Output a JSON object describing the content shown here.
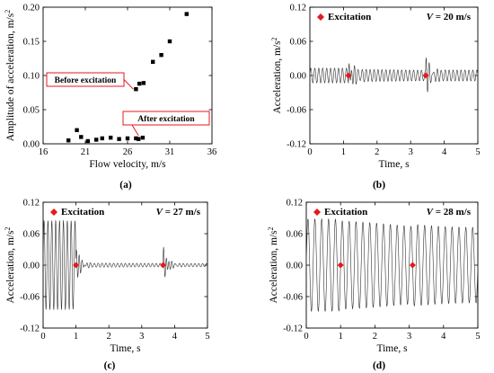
{
  "colors": {
    "axis": "#000000",
    "signal": "#333333",
    "marker": "#e41a1c",
    "callout_border": "#e41a1c",
    "scatter": "#000000"
  },
  "chart_data": [
    {
      "id": "a",
      "type": "scatter",
      "panel_label": "(a)",
      "xlabel": "Flow velocity, m/s",
      "ylabel": "Amplitude of acceleration, m/s",
      "ylabel_sup": "2",
      "xlim": [
        16,
        36
      ],
      "ylim": [
        0,
        0.2
      ],
      "xticks": [
        16,
        21,
        26,
        31,
        36
      ],
      "xtick_labels": [
        "16",
        "21",
        "26",
        "31",
        "36"
      ],
      "yticks": [
        0,
        0.05,
        0.1,
        0.15,
        0.2
      ],
      "ytick_labels": [
        "0.00",
        "0.05",
        "0.10",
        "0.15",
        "0.20"
      ],
      "points": [
        [
          19.0,
          0.005
        ],
        [
          20.0,
          0.02
        ],
        [
          20.5,
          0.01
        ],
        [
          21.3,
          0.004
        ],
        [
          22.3,
          0.006
        ],
        [
          23.0,
          0.008
        ],
        [
          24.0,
          0.009
        ],
        [
          25.0,
          0.007
        ],
        [
          26.0,
          0.008
        ],
        [
          27.0,
          0.008
        ],
        [
          27.3,
          0.007
        ],
        [
          27.8,
          0.009
        ],
        [
          27.0,
          0.08
        ],
        [
          27.4,
          0.088
        ],
        [
          27.9,
          0.089
        ],
        [
          29.0,
          0.12
        ],
        [
          30.0,
          0.13
        ],
        [
          31.0,
          0.15
        ],
        [
          33.0,
          0.19
        ]
      ],
      "annotations": [
        {
          "text": "Before excitation",
          "x": 27.0,
          "y": 0.08
        },
        {
          "text": "After excitation",
          "x": 27.3,
          "y": 0.008
        }
      ]
    },
    {
      "id": "b",
      "type": "line",
      "panel_label": "(b)",
      "xlabel": "Time, s",
      "ylabel": "Acceleration, m/s",
      "ylabel_sup": "2",
      "xlim": [
        0,
        5
      ],
      "ylim": [
        -0.12,
        0.12
      ],
      "xticks": [
        0,
        1,
        2,
        3,
        4,
        5
      ],
      "xtick_labels": [
        "0",
        "1",
        "2",
        "3",
        "4",
        "5"
      ],
      "yticks": [
        -0.12,
        -0.06,
        0,
        0.06,
        0.12
      ],
      "ytick_labels": [
        "-0.12",
        "-0.06",
        "0.00",
        "0.06",
        "0.12"
      ],
      "legend": "Excitation",
      "velocity_label": "V",
      "velocity_value": " = 20 m/s",
      "excitation_times": [
        1.15,
        3.45
      ],
      "signal": {
        "freq_hz": 8.5,
        "segments": [
          [
            0,
            1.15,
            0.013
          ],
          [
            1.15,
            3.45,
            0.011
          ],
          [
            3.45,
            5,
            0.012
          ]
        ],
        "transient_amp": 0.03
      }
    },
    {
      "id": "c",
      "type": "line",
      "panel_label": "(c)",
      "xlabel": "Time, s",
      "ylabel": "Acceleration, m/s",
      "ylabel_sup": "2",
      "xlim": [
        0,
        5
      ],
      "ylim": [
        -0.12,
        0.12
      ],
      "xticks": [
        0,
        1,
        2,
        3,
        4,
        5
      ],
      "xtick_labels": [
        "0",
        "1",
        "2",
        "3",
        "4",
        "5"
      ],
      "yticks": [
        -0.12,
        -0.06,
        0,
        0.06,
        0.12
      ],
      "ytick_labels": [
        "-0.12",
        "-0.06",
        "0.00",
        "0.06",
        "0.12"
      ],
      "legend": "Excitation",
      "velocity_label": "V",
      "velocity_value": " = 27 m/s",
      "excitation_times": [
        1.0,
        3.65
      ],
      "signal": {
        "freq_hz": 8.5,
        "segments": [
          [
            0,
            1.0,
            0.085
          ],
          [
            1.0,
            3.65,
            0.004
          ],
          [
            3.65,
            5,
            0.004
          ]
        ],
        "transient_amp": 0.035
      }
    },
    {
      "id": "d",
      "type": "line",
      "panel_label": "(d)",
      "xlabel": "Time, s",
      "ylabel": "Acceleration, m/s",
      "ylabel_sup": "2",
      "xlim": [
        0,
        5
      ],
      "ylim": [
        -0.12,
        0.12
      ],
      "xticks": [
        0,
        1,
        2,
        3,
        4,
        5
      ],
      "xtick_labels": [
        "0",
        "1",
        "2",
        "3",
        "4",
        "5"
      ],
      "yticks": [
        -0.12,
        -0.06,
        0,
        0.06,
        0.12
      ],
      "ytick_labels": [
        "-0.12",
        "-0.06",
        "0.00",
        "0.06",
        "0.12"
      ],
      "legend": "Excitation",
      "velocity_label": "V",
      "velocity_value": " = 28 m/s",
      "excitation_times": [
        1.0,
        3.1
      ],
      "signal": {
        "freq_hz": 5.0,
        "segments": [
          [
            0,
            1.0,
            0.088
          ],
          [
            1.0,
            3.1,
            0.085
          ],
          [
            3.1,
            5,
            0.09
          ]
        ],
        "transient_amp": 0.0
      }
    }
  ]
}
